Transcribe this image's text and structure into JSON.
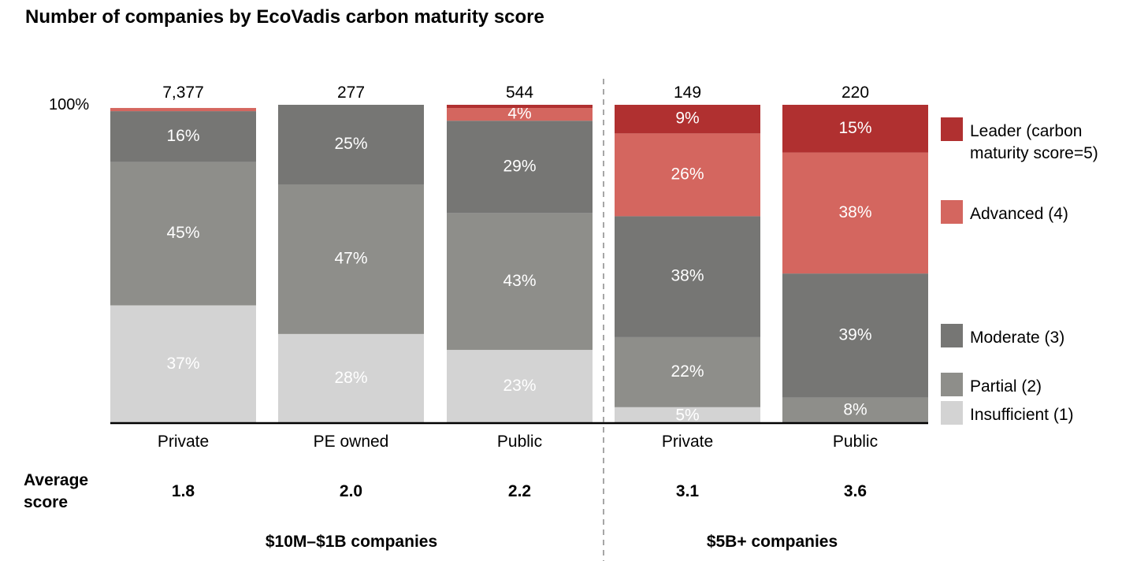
{
  "title": "Number of companies by EcoVadis carbon maturity score",
  "chart_data": {
    "type": "bar",
    "stacked": true,
    "normalized": true,
    "title": "Number of companies by EcoVadis carbon maturity score",
    "y_axis_label": "100%",
    "ylim": [
      0,
      100
    ],
    "categories": [
      "Private",
      "PE owned",
      "Public",
      "Private",
      "Public"
    ],
    "counts": [
      "7,377",
      "277",
      "544",
      "149",
      "220"
    ],
    "average_score_label": "Average score",
    "average_scores": [
      "1.8",
      "2.0",
      "2.2",
      "3.1",
      "3.6"
    ],
    "groups": [
      {
        "label": "$10M–$1B companies",
        "categories": [
          0,
          1,
          2
        ]
      },
      {
        "label": "$5B+ companies",
        "categories": [
          3,
          4
        ]
      }
    ],
    "series": [
      {
        "name": "Insufficient (1)",
        "color": "#d3d3d3",
        "values": [
          37,
          28,
          23,
          5,
          0
        ],
        "labels": [
          "37%",
          "28%",
          "23%",
          "5%",
          ""
        ]
      },
      {
        "name": "Partial (2)",
        "color": "#8e8e8a",
        "values": [
          45,
          47,
          43,
          22,
          8
        ],
        "labels": [
          "45%",
          "47%",
          "43%",
          "22%",
          "8%"
        ]
      },
      {
        "name": "Moderate (3)",
        "color": "#767674",
        "values": [
          16,
          25,
          29,
          38,
          39
        ],
        "labels": [
          "16%",
          "25%",
          "29%",
          "38%",
          "39%"
        ]
      },
      {
        "name": "Advanced (4)",
        "color": "#d4665f",
        "values": [
          1,
          0,
          4,
          26,
          38
        ],
        "labels": [
          "",
          "",
          "4%",
          "26%",
          "38%"
        ]
      },
      {
        "name": "Leader (carbon maturity score=5)",
        "color": "#b03030",
        "values": [
          0,
          0,
          1,
          9,
          15
        ],
        "labels": [
          "",
          "",
          "",
          "9%",
          "15%"
        ]
      }
    ],
    "legend_position": "right",
    "grid": false
  }
}
